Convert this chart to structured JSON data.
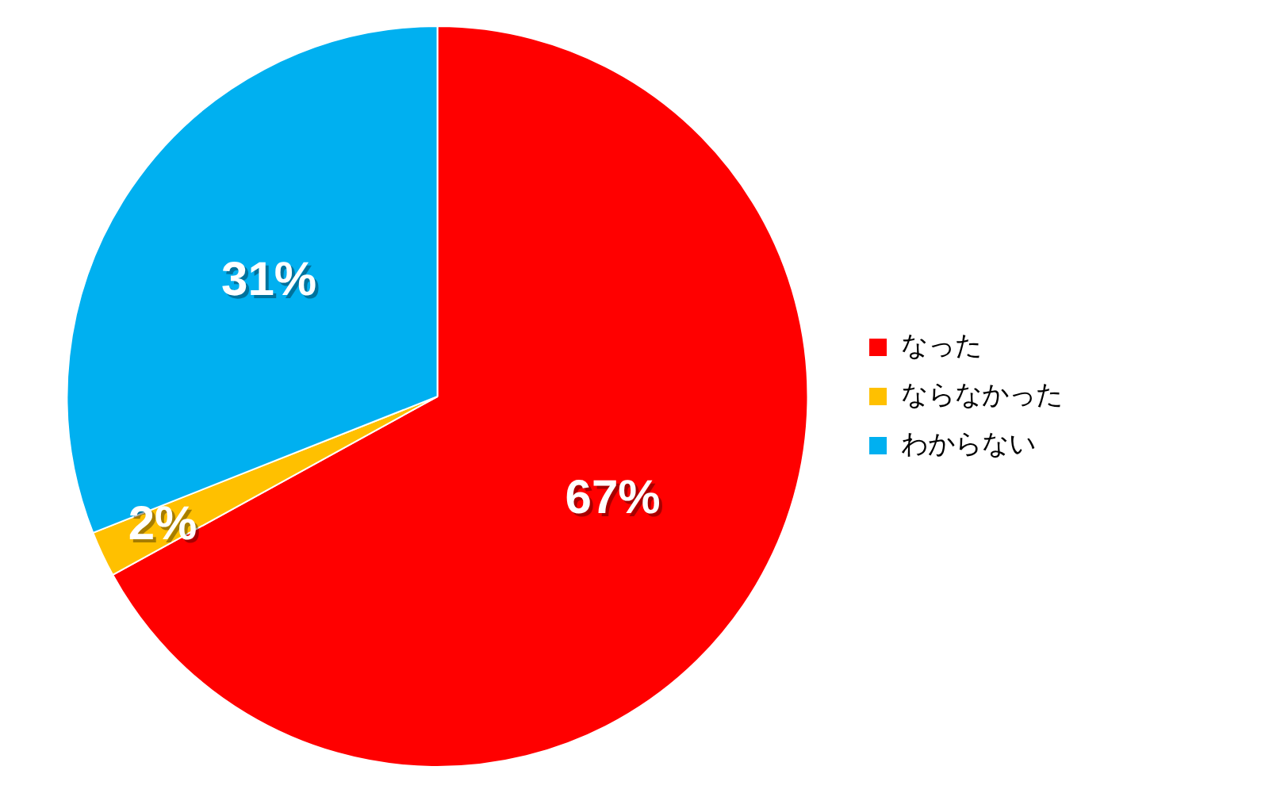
{
  "chart_data": {
    "type": "pie",
    "categories": [
      "なった",
      "ならなかった",
      "わからない"
    ],
    "values": [
      67,
      2,
      31
    ],
    "colors": [
      "#ff0000",
      "#ffc000",
      "#00b0f0"
    ],
    "value_labels": [
      "67%",
      "2%",
      "31%"
    ],
    "legend": "right"
  }
}
